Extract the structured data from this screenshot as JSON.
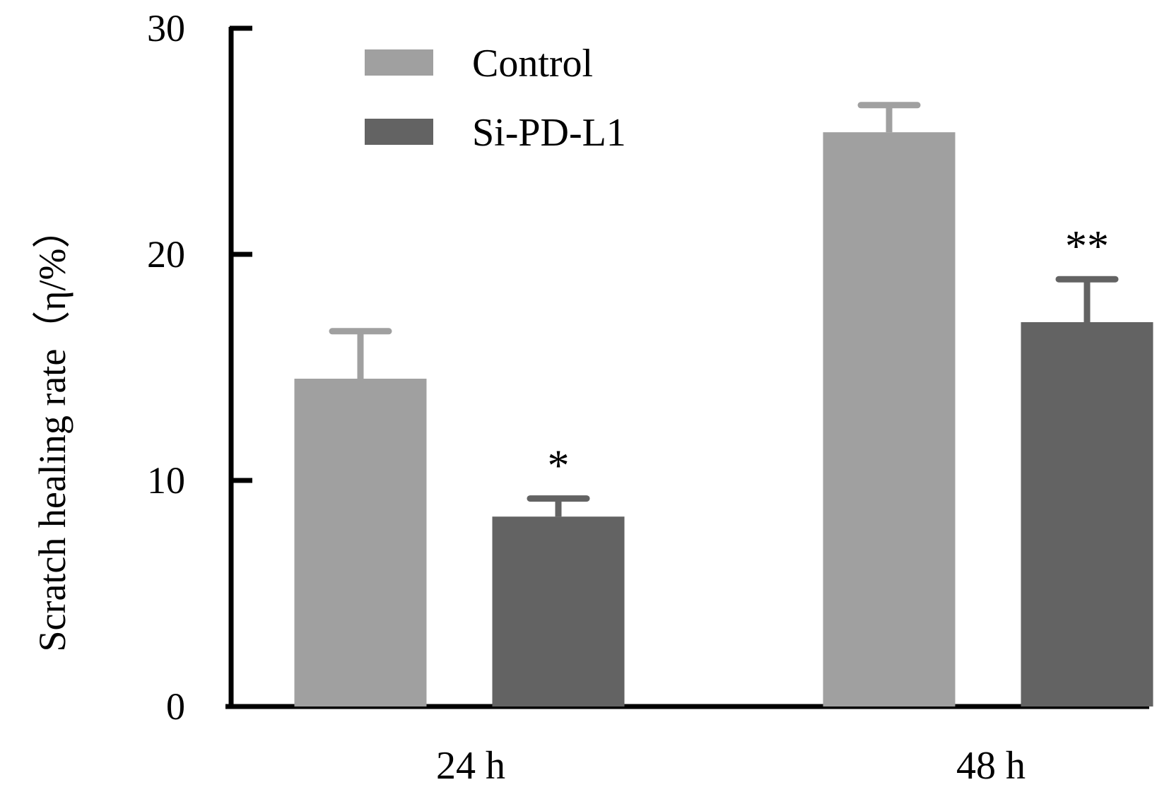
{
  "chart_data": {
    "type": "bar",
    "categories": [
      "24 h",
      "48 h"
    ],
    "series": [
      {
        "name": "Control",
        "values": [
          14.5,
          25.4
        ],
        "errors": [
          2.1,
          1.2
        ],
        "color": "#a0a0a0"
      },
      {
        "name": "Si-PD-L1",
        "values": [
          8.4,
          17.0
        ],
        "errors": [
          0.8,
          1.9
        ],
        "color": "#636363"
      }
    ],
    "significance": [
      {
        "series": 1,
        "category": 0,
        "label": "*"
      },
      {
        "series": 1,
        "category": 1,
        "label": "**"
      }
    ],
    "ylabel": "Scratch healing rate（η/%）",
    "xlabel": "",
    "ylim": [
      0,
      30
    ],
    "yticks": [
      0,
      10,
      20,
      30
    ],
    "grid": false,
    "legend_position": "top-left",
    "axis_color": "#000000"
  }
}
